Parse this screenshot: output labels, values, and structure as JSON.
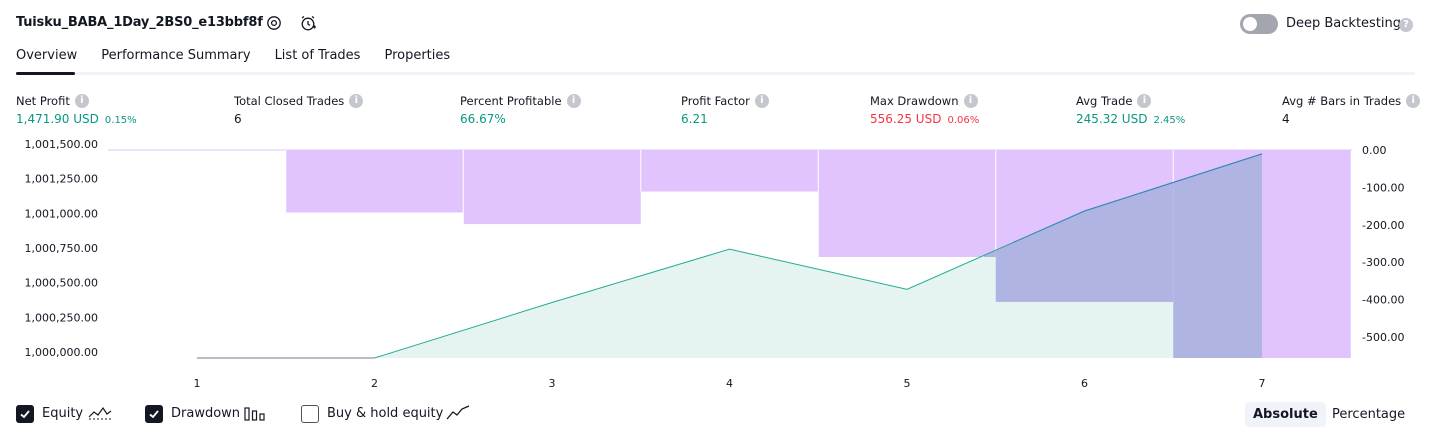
{
  "header": {
    "title": "Tuisku_BABA_1Day_2BS0_e13bbf8f",
    "deep_backtesting_label": "Deep Backtesting",
    "deep_backtesting_on": false
  },
  "tabs": [
    {
      "label": "Overview",
      "active": true
    },
    {
      "label": "Performance Summary",
      "active": false
    },
    {
      "label": "List of Trades",
      "active": false
    },
    {
      "label": "Properties",
      "active": false
    }
  ],
  "stats": {
    "net_profit": {
      "label": "Net Profit",
      "value": "1,471.90 USD",
      "pct": "0.15%"
    },
    "total_closed_trades": {
      "label": "Total Closed Trades",
      "value": "6"
    },
    "percent_profitable": {
      "label": "Percent Profitable",
      "value": "66.67%"
    },
    "profit_factor": {
      "label": "Profit Factor",
      "value": "6.21"
    },
    "max_drawdown": {
      "label": "Max Drawdown",
      "value": "556.25 USD",
      "pct": "0.06%"
    },
    "avg_trade": {
      "label": "Avg Trade",
      "value": "245.32 USD",
      "pct": "2.45%"
    },
    "avg_bars": {
      "label": "Avg # Bars in Trades",
      "value": "4"
    }
  },
  "chart_data": {
    "type": "line",
    "x": [
      1,
      2,
      3,
      4,
      5,
      6,
      7
    ],
    "series": [
      {
        "name": "Equity",
        "values": [
          1000000,
          1000000,
          1000400,
          1000785,
          1000495,
          1001060,
          1001472
        ]
      },
      {
        "name": "Drawdown",
        "values": [
          0,
          -167,
          -198,
          -111,
          -286,
          -406,
          -556
        ]
      }
    ],
    "y_left": {
      "ticks": [
        "1,001,500.00",
        "1,001,250.00",
        "1,001,000.00",
        "1,000,750.00",
        "1,000,500.00",
        "1,000,250.00",
        "1,000,000.00"
      ],
      "range": [
        1000000,
        1001500
      ]
    },
    "y_right": {
      "ticks": [
        "0.00",
        "-100.00",
        "-200.00",
        "-300.00",
        "-400.00",
        "-500.00"
      ],
      "range": [
        -556,
        0
      ]
    },
    "colors": {
      "equity_line": "#22ab94",
      "equity_fill": "#e0f2ee",
      "drawdown_fill": "#e1c4fd",
      "overlap_fill": "#b0b4e2",
      "overlap_line": "#3b82c4"
    }
  },
  "legend": {
    "equity": {
      "label": "Equity",
      "checked": true
    },
    "drawdown": {
      "label": "Drawdown",
      "checked": true
    },
    "buy_hold": {
      "label": "Buy & hold equity",
      "checked": false
    }
  },
  "mode": {
    "absolute": "Absolute",
    "percentage": "Percentage",
    "active": "absolute"
  }
}
